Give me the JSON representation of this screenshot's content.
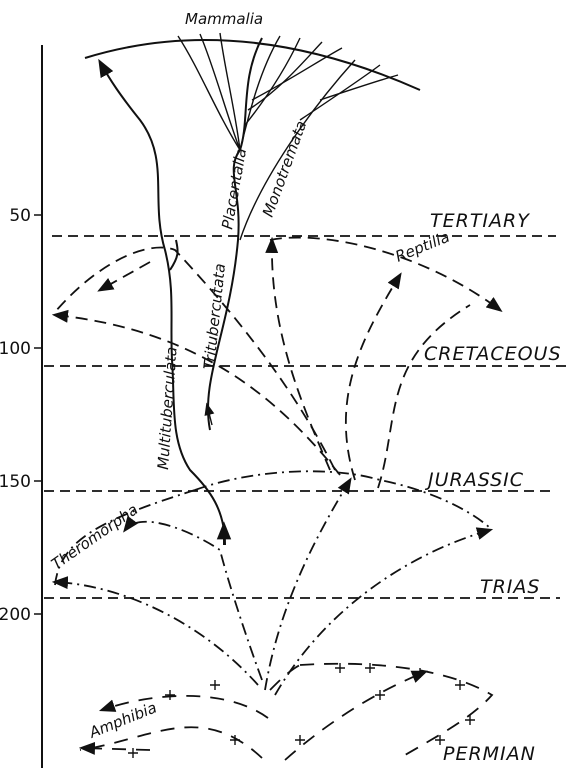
{
  "axis": {
    "ticks": [
      50,
      100,
      150,
      200
    ]
  },
  "periods": [
    "TERTIARY",
    "CRETACEOUS",
    "JURASSIC",
    "TRIAS",
    "PERMIAN"
  ],
  "taxa": {
    "top": "Mammalia",
    "placentalia": "Placentalia",
    "monotremata": "Monotremata",
    "tritubercutata": "Tritubercutata",
    "multituberculata": "Multituberculata",
    "reptilia": "Reptilia",
    "theromorpha": "Theromorpha",
    "amphibia": "Amphibia"
  }
}
